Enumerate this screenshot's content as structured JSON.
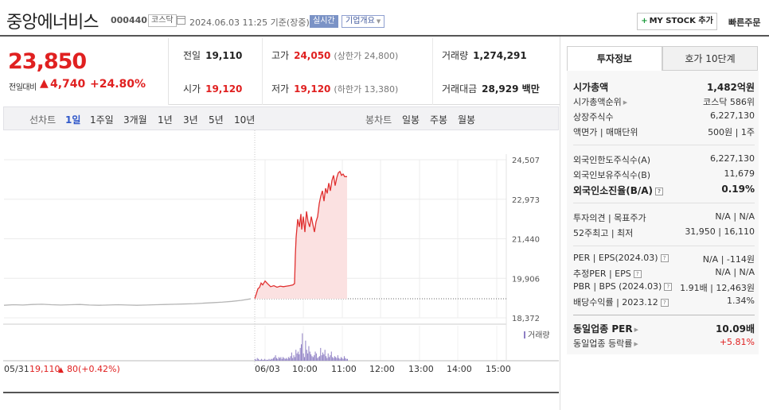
{
  "header": {
    "company": "중앙에너비스",
    "code": "000440",
    "market": "코스닥",
    "datetime": "2024.06.03 11:25  기준(장중)",
    "realtime": "실시간",
    "overview": "기업개요",
    "mystock": "MY STOCK 추가",
    "quick_order": "빠른주문"
  },
  "price": {
    "current": "23,850",
    "change_label": "전일대비",
    "change_value": "4,740",
    "change_pct": "+24.80%"
  },
  "stats": {
    "prev_label": "전일",
    "prev": "19,110",
    "high_label": "고가",
    "high": "24,050",
    "upper_limit": "(상한가 24,800)",
    "volume_label": "거래량",
    "volume": "1,274,291",
    "open_label": "시가",
    "open": "19,120",
    "low_label": "저가",
    "low": "19,120",
    "lower_limit": "(하한가 13,380)",
    "amount_label": "거래대금",
    "amount": "28,929 백만"
  },
  "periods": {
    "line_label": "선차트",
    "line": [
      "1일",
      "1주일",
      "3개월",
      "1년",
      "3년",
      "5년",
      "10년"
    ],
    "candle_label": "봉차트",
    "candle": [
      "일봉",
      "주봉",
      "월봉"
    ]
  },
  "chart_data": {
    "type": "line",
    "y_ticks": [
      "24,507",
      "22,973",
      "21,440",
      "19,906",
      "18,372"
    ],
    "ylim": [
      18372,
      24507
    ],
    "x_ticks": [
      "06/03",
      "10:00",
      "11:00",
      "12:00",
      "13:00",
      "14:00",
      "15:00"
    ],
    "prev_close": 19110,
    "volume_label": "거래량",
    "prev_day_label": "05/31",
    "prev_day_price": "19,110",
    "prev_day_change": "80",
    "prev_day_pct": "(+0.42%)",
    "colors": {
      "line": "#e03030",
      "fill": "#fbe1e1",
      "prev_line": "#b5b5b5",
      "volume": "#8e7fc4"
    }
  },
  "side": {
    "tabs": [
      "투자정보",
      "호가 10단계"
    ],
    "market_cap_label": "시가총액",
    "market_cap": "1,482억원",
    "rank_label": "시가총액순위",
    "rank": "코스닥 586위",
    "shares_label": "상장주식수",
    "shares": "6,227,130",
    "par_label": "액면가 | 매매단위",
    "par": "500원 | 1주",
    "foreign_limit_label": "외국인한도주식수(A)",
    "foreign_limit": "6,227,130",
    "foreign_hold_label": "외국인보유주식수(B)",
    "foreign_hold": "11,679",
    "foreign_ratio_label": "외국인소진율(B/A)",
    "foreign_ratio": "0.19%",
    "opinion_label": "투자의견 | 목표주가",
    "opinion": "N/A | N/A",
    "w52_label": "52주최고 | 최저",
    "w52": "31,950 | 16,110",
    "per_label": "PER | EPS(2024.03)",
    "per": "N/A | -114원",
    "est_per_label": "추정PER | EPS",
    "est_per": "N/A | N/A",
    "pbr_label": "PBR | BPS (2024.03)",
    "pbr": "1.91배 | 12,463원",
    "dividend_label": "배당수익률 | 2023.12",
    "dividend": "1.34%",
    "sector_per_label": "동일업종 PER",
    "sector_per": "10.09배",
    "sector_rate_label": "동일업종 등락률",
    "sector_rate": "+5.81%"
  }
}
